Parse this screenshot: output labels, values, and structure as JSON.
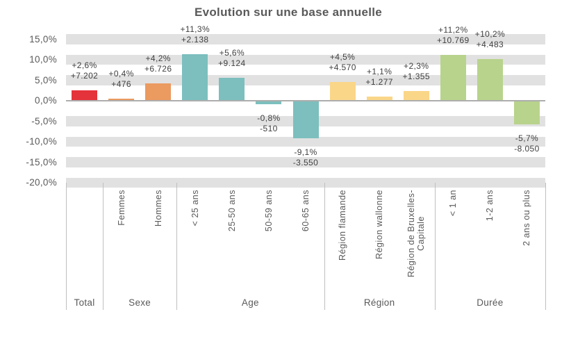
{
  "chart_data": {
    "type": "bar",
    "title": "Evolution sur une base annuelle",
    "legend": "none",
    "grid_style": "horizontal-gray-stripes",
    "y_axis": {
      "min": -20,
      "max": 15,
      "step": 5,
      "tick_values": [
        15,
        10,
        5,
        0,
        -5,
        -10,
        -15,
        -20
      ],
      "tick_labels": [
        "15,0%",
        "10,0%",
        "5,0%",
        "0,0%",
        "-5,0%",
        "-10,0%",
        "-15,0%",
        "-20,0%"
      ]
    },
    "stripe_values": [
      15,
      10,
      5,
      -5,
      -10,
      -15,
      -20
    ],
    "groups": [
      {
        "label": "Total",
        "categories": [
          {
            "name": "",
            "pct": 2.6,
            "pct_label": "+2,6%",
            "abs_label": "+7.202",
            "color_key": "total"
          }
        ]
      },
      {
        "label": "Sexe",
        "categories": [
          {
            "name": "Femmes",
            "pct": 0.4,
            "pct_label": "+0,4%",
            "abs_label": "+476",
            "color_key": "sexe"
          },
          {
            "name": "Hommes",
            "pct": 4.2,
            "pct_label": "+4,2%",
            "abs_label": "+6.726",
            "color_key": "sexe"
          }
        ]
      },
      {
        "label": "Age",
        "categories": [
          {
            "name": "< 25 ans",
            "pct": 11.3,
            "pct_label": "+11,3%",
            "abs_label": "+2.138",
            "color_key": "age"
          },
          {
            "name": "25-50 ans",
            "pct": 5.6,
            "pct_label": "+5,6%",
            "abs_label": "+9.124",
            "color_key": "age"
          },
          {
            "name": "50-59 ans",
            "pct": -0.8,
            "pct_label": "-0,8%",
            "abs_label": "-510",
            "color_key": "age"
          },
          {
            "name": "60-65 ans",
            "pct": -9.1,
            "pct_label": "-9,1%",
            "abs_label": "-3.550",
            "color_key": "age"
          }
        ]
      },
      {
        "label": "Région",
        "categories": [
          {
            "name": "Région flamande",
            "pct": 4.5,
            "pct_label": "+4,5%",
            "abs_label": "+4.570",
            "color_key": "region"
          },
          {
            "name": "Région wallonne",
            "pct": 1.1,
            "pct_label": "+1,1%",
            "abs_label": "+1.277",
            "color_key": "region"
          },
          {
            "name": "Région de Bruxelles-\nCapitale",
            "pct": 2.3,
            "pct_label": "+2,3%",
            "abs_label": "+1.355",
            "color_key": "region"
          }
        ]
      },
      {
        "label": "Durée",
        "categories": [
          {
            "name": "< 1 an",
            "pct": 11.2,
            "pct_label": "+11,2%",
            "abs_label": "+10.769",
            "color_key": "duree"
          },
          {
            "name": "1-2 ans",
            "pct": 10.2,
            "pct_label": "+10,2%",
            "abs_label": "+4.483",
            "color_key": "duree"
          },
          {
            "name": "2 ans ou plus",
            "pct": -5.7,
            "pct_label": "-5,7%",
            "abs_label": "-8.050",
            "color_key": "duree"
          }
        ]
      }
    ],
    "colors": {
      "total": "#E4333A",
      "sexe": "#EB9A60",
      "age": "#7CBFBE",
      "region": "#FAD689",
      "duree": "#B8D38C",
      "stripe": "#E1E1E1",
      "axis_line": "#ADADAD",
      "separator": "#BFBFBF",
      "heading_text": "#595959",
      "label_text": "#404040"
    }
  }
}
